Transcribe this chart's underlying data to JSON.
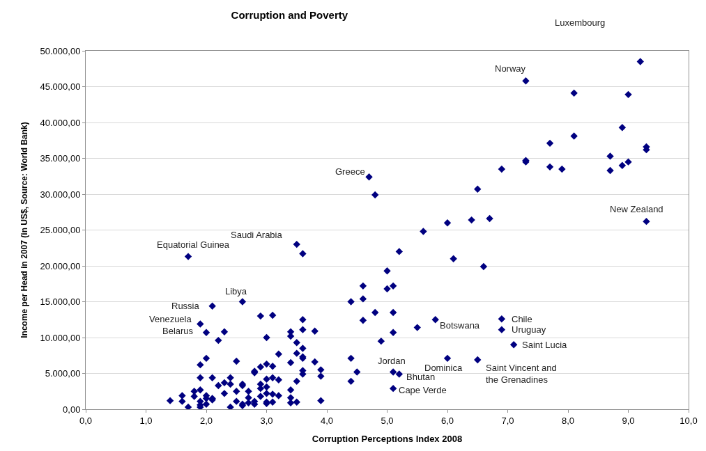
{
  "chart_data": {
    "type": "scatter",
    "title": "Corruption and Poverty",
    "xlabel": "Corruption Perceptions Index 2008",
    "ylabel": "Income per Head in 2007 (in US$, Source: World Bank)",
    "x": [
      9.2,
      7.3,
      8.1,
      9.0,
      8.9,
      8.1,
      7.7,
      9.3,
      9.3,
      8.7,
      7.3,
      7.3,
      6.9,
      7.7,
      7.9,
      8.7,
      8.9,
      9.0,
      6.5,
      6.0,
      6.4,
      6.7,
      9.3,
      4.7,
      4.8,
      5.6,
      3.5,
      3.6,
      1.7,
      5.2,
      6.1,
      6.6,
      5.0,
      4.6,
      5.0,
      5.1,
      4.4,
      4.6,
      4.8,
      5.1,
      4.6,
      5.1,
      5.5,
      5.8,
      6.9,
      6.9,
      7.1,
      4.9,
      4.4,
      4.5,
      4.4,
      6.0,
      6.5,
      5.1,
      5.2,
      5.1,
      2.1,
      2.6,
      2.9,
      3.1,
      3.6,
      1.9,
      2.0,
      2.3,
      3.4,
      3.6,
      3.8,
      2.2,
      3.0,
      3.4,
      3.5,
      3.6,
      3.2,
      3.5,
      3.6,
      3.6,
      3.8,
      2.0,
      1.9,
      2.5,
      3.0,
      2.9,
      3.1,
      2.8,
      2.8,
      3.4,
      3.9,
      3.9,
      3.6,
      3.6,
      3.5,
      1.9,
      2.1,
      2.4,
      2.3,
      2.2,
      2.4,
      2.6,
      2.6,
      2.5,
      2.7,
      2.9,
      2.9,
      3.0,
      3.0,
      3.1,
      3.2,
      3.4,
      1.9,
      1.8,
      1.8,
      1.6,
      1.6,
      1.4,
      1.7,
      1.9,
      1.9,
      1.9,
      2.0,
      2.0,
      2.0,
      2.1,
      2.1,
      2.3,
      2.4,
      2.5,
      2.6,
      2.6,
      2.7,
      2.7,
      2.8,
      2.8,
      2.9,
      3.0,
      3.0,
      3.0,
      3.1,
      3.1,
      3.2,
      3.4,
      3.4,
      3.5,
      3.9
    ],
    "values": [
      48500,
      45800,
      44100,
      43900,
      39300,
      38100,
      37100,
      36600,
      36200,
      35300,
      34700,
      34500,
      33500,
      33800,
      33500,
      33300,
      34000,
      34500,
      30700,
      26000,
      26400,
      26600,
      26200,
      32400,
      29900,
      24800,
      23000,
      21700,
      21300,
      22000,
      21000,
      19900,
      19300,
      17200,
      16800,
      17200,
      15000,
      15400,
      13500,
      13500,
      12400,
      10700,
      11400,
      12500,
      12600,
      11100,
      9000,
      9500,
      7100,
      5200,
      3900,
      7100,
      6900,
      5200,
      4900,
      2900,
      14400,
      15000,
      13000,
      13100,
      12500,
      11900,
      10700,
      10800,
      10800,
      11100,
      10900,
      9600,
      10000,
      10200,
      9300,
      8500,
      7700,
      7800,
      7300,
      7100,
      6600,
      7100,
      6200,
      6700,
      6300,
      5900,
      6000,
      5300,
      5100,
      6500,
      5500,
      4600,
      5400,
      4900,
      3900,
      4400,
      4400,
      4400,
      3700,
      3300,
      3500,
      3500,
      3300,
      2500,
      2500,
      3500,
      2900,
      3100,
      4200,
      4400,
      4100,
      2700,
      2700,
      2500,
      1800,
      1900,
      1100,
      1200,
      300,
      1100,
      600,
      300,
      1900,
      1500,
      700,
      1500,
      1300,
      2200,
      300,
      1100,
      700,
      500,
      1600,
      900,
      1100,
      700,
      1800,
      2200,
      1000,
      800,
      2100,
      1000,
      1900,
      1600,
      900,
      1000,
      1200
    ],
    "color": "#000080",
    "marker": "diamond",
    "grid": "y",
    "xlim": [
      0,
      10
    ],
    "xticks": [
      {
        "value": 0,
        "label": "0,0"
      },
      {
        "value": 1,
        "label": "1,0"
      },
      {
        "value": 2,
        "label": "2,0"
      },
      {
        "value": 3,
        "label": "3,0"
      },
      {
        "value": 4,
        "label": "4,0"
      },
      {
        "value": 5,
        "label": "5,0"
      },
      {
        "value": 6,
        "label": "6,0"
      },
      {
        "value": 7,
        "label": "7,0"
      },
      {
        "value": 8,
        "label": "8,0"
      },
      {
        "value": 9,
        "label": "9,0"
      },
      {
        "value": 10,
        "label": "10,0"
      }
    ],
    "ylim": [
      0,
      50000
    ],
    "yticks": [
      {
        "value": 0,
        "label": "0,00"
      },
      {
        "value": 5000,
        "label": "5.000,00"
      },
      {
        "value": 10000,
        "label": "10.000,00"
      },
      {
        "value": 15000,
        "label": "15.000,00"
      },
      {
        "value": 20000,
        "label": "20.000,00"
      },
      {
        "value": 25000,
        "label": "25.000,00"
      },
      {
        "value": 30000,
        "label": "30.000,00"
      },
      {
        "value": 35000,
        "label": "35.000,00"
      },
      {
        "value": 40000,
        "label": "40.000,00"
      },
      {
        "value": 45000,
        "label": "45.000,00"
      },
      {
        "value": 50000,
        "label": "50.000,00"
      }
    ],
    "annotations": [
      "Luxembourg",
      {
        "text": "Norway",
        "x": 7.3,
        "y": 45800
      },
      {
        "text": "Greece",
        "x": 4.7,
        "y": 32400
      },
      {
        "text": "New Zealand",
        "x": 9.3,
        "y": 26200
      },
      {
        "text": "Saudi Arabia",
        "x": 3.5,
        "y": 23000
      },
      {
        "text": "Equatorial Guinea",
        "x": 1.7,
        "y": 21300
      },
      {
        "text": "Libya",
        "x": 2.6,
        "y": 15000
      },
      {
        "text": "Russia",
        "x": 2.1,
        "y": 14400
      },
      {
        "text": "Venezuela",
        "x": 1.9,
        "y": 11900
      },
      {
        "text": "Belarus",
        "x": 2.0,
        "y": 10700
      },
      {
        "text": "Chile",
        "x": 6.9,
        "y": 12600
      },
      {
        "text": "Uruguay",
        "x": 6.9,
        "y": 11100
      },
      {
        "text": "Saint Lucia",
        "x": 7.1,
        "y": 9000
      },
      {
        "text": "Botswana",
        "x": 5.8,
        "y": 12500
      },
      {
        "text": "Jordan",
        "x": 5.1,
        "y": 5200
      },
      {
        "text": "Bhutan",
        "x": 5.2,
        "y": 4900
      },
      {
        "text": "Dominica",
        "x": 6.0,
        "y": 7100
      },
      {
        "text": "Saint Vincent and\nthe Grenadines",
        "x": 6.5,
        "y": 6900
      },
      {
        "text": "Cape Verde",
        "x": 5.1,
        "y": 2900
      }
    ]
  }
}
